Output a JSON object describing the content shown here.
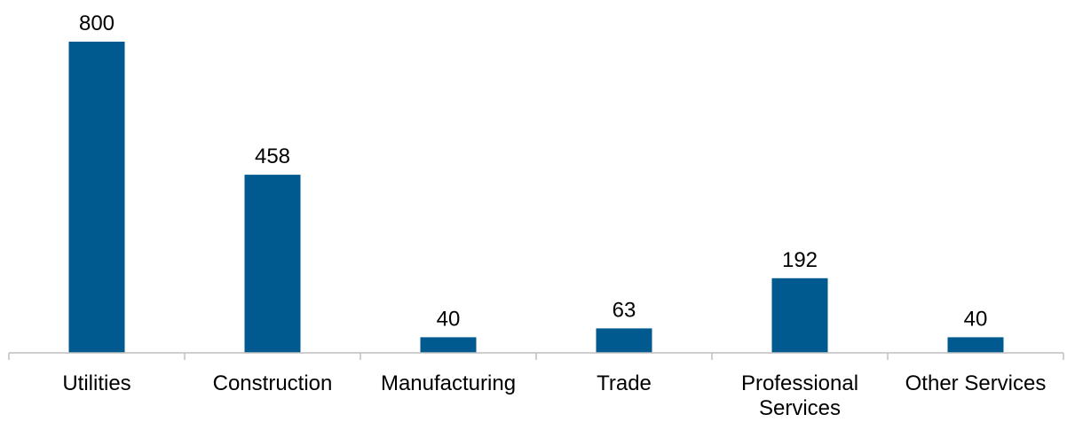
{
  "chart_data": {
    "type": "bar",
    "categories": [
      "Utilities",
      "Construction",
      "Manufacturing",
      "Trade",
      "Professional Services",
      "Other Services"
    ],
    "category_lines": [
      [
        "Utilities"
      ],
      [
        "Construction"
      ],
      [
        "Manufacturing"
      ],
      [
        "Trade"
      ],
      [
        "Professional",
        "Services"
      ],
      [
        "Other Services"
      ]
    ],
    "values": [
      800,
      458,
      40,
      63,
      192,
      40
    ],
    "value_labels": [
      "800",
      "458",
      "40",
      "63",
      "192",
      "40"
    ],
    "bar_color": "#005A8F",
    "axis_color": "#BFBFBF",
    "ylim": [
      0,
      800
    ],
    "grid": false,
    "legend": "none"
  }
}
